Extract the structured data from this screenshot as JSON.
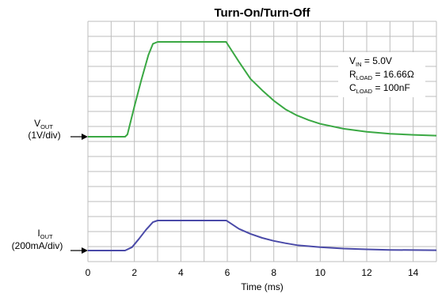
{
  "chart_data": {
    "type": "line",
    "title": "Turn-On/Turn-Off",
    "xlabel": "Time (ms)",
    "xlim": [
      0,
      15
    ],
    "x_ticks": [
      "0",
      "2",
      "4",
      "6",
      "8",
      "10",
      "12",
      "14"
    ],
    "grid": true,
    "annotations": [
      {
        "main": "V",
        "sub": "IN",
        "rest": " = 5.0V"
      },
      {
        "main": "R",
        "sub": "LOAD",
        "rest": " = 16.66Ω"
      },
      {
        "main": "C",
        "sub": "LOAD",
        "rest": " = 100nF"
      }
    ],
    "channels": [
      {
        "name_main": "V",
        "name_sub": "OUT",
        "scale": "(1V/div)"
      },
      {
        "name_main": "I",
        "name_sub": "OUT",
        "scale": "(200mA/div)"
      }
    ],
    "series": [
      {
        "color": "#3aa843",
        "points": [
          [
            0,
            0
          ],
          [
            1.6,
            0
          ],
          [
            1.7,
            0.12
          ],
          [
            2.0,
            1.6
          ],
          [
            2.3,
            3.0
          ],
          [
            2.6,
            4.3
          ],
          [
            2.8,
            4.9
          ],
          [
            3.0,
            5.0
          ],
          [
            5.95,
            5.0
          ],
          [
            6.0,
            4.9
          ],
          [
            6.5,
            3.95
          ],
          [
            7,
            3.05
          ],
          [
            7.5,
            2.45
          ],
          [
            8,
            1.9
          ],
          [
            8.5,
            1.45
          ],
          [
            9,
            1.12
          ],
          [
            9.5,
            0.88
          ],
          [
            10,
            0.68
          ],
          [
            11,
            0.42
          ],
          [
            12,
            0.26
          ],
          [
            13,
            0.16
          ],
          [
            14,
            0.1
          ],
          [
            15,
            0.06
          ]
        ]
      },
      {
        "color": "#4a4aa8",
        "points": [
          [
            0,
            0
          ],
          [
            1.6,
            0
          ],
          [
            1.9,
            0.1
          ],
          [
            2.2,
            0.35
          ],
          [
            2.5,
            0.62
          ],
          [
            2.8,
            0.85
          ],
          [
            3.0,
            0.9
          ],
          [
            5.95,
            0.9
          ],
          [
            6.0,
            0.88
          ],
          [
            6.5,
            0.65
          ],
          [
            7,
            0.5
          ],
          [
            7.5,
            0.38
          ],
          [
            8,
            0.29
          ],
          [
            8.5,
            0.22
          ],
          [
            9,
            0.16
          ],
          [
            10,
            0.1
          ],
          [
            11,
            0.06
          ],
          [
            12,
            0.035
          ],
          [
            13,
            0.02
          ],
          [
            15,
            0.01
          ]
        ]
      }
    ]
  }
}
